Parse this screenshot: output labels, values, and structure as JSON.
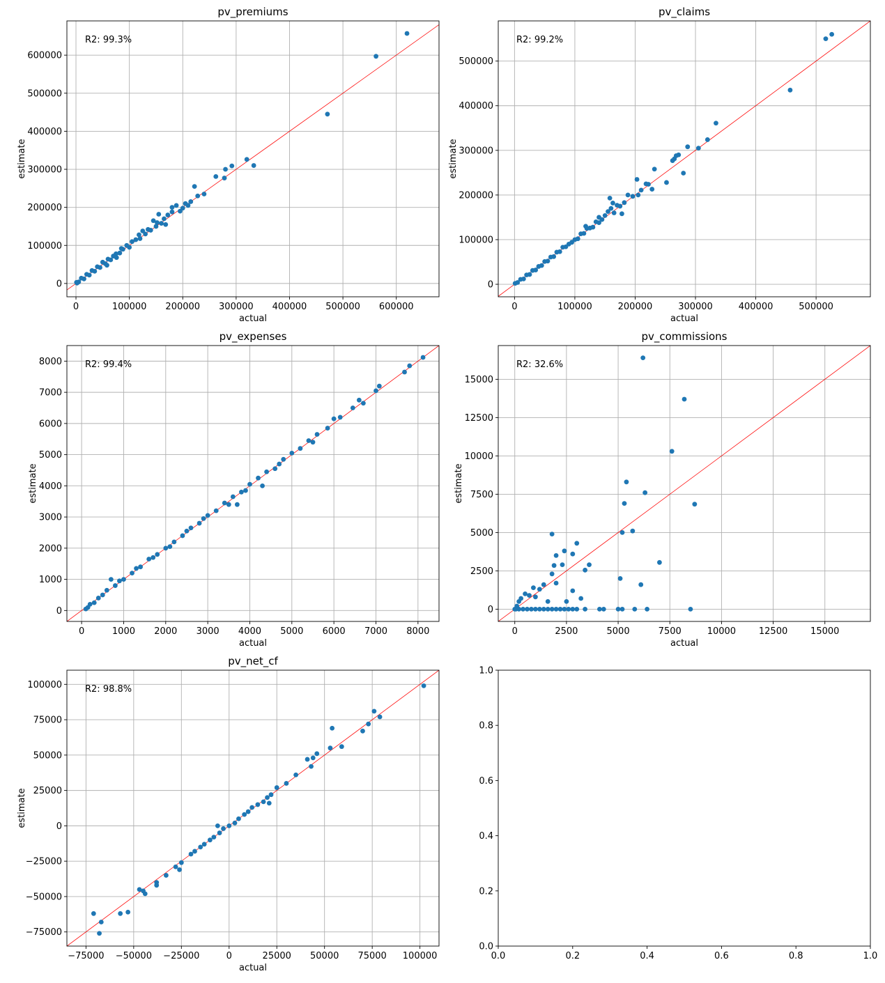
{
  "chart_data": [
    {
      "type": "scatter",
      "title": "pv_premiums",
      "xlabel": "actual",
      "ylabel": "estimate",
      "annotation": "R2: 99.3%",
      "xlim": [
        -17000,
        680000
      ],
      "ylim": [
        -35000,
        690000
      ],
      "xticks": [
        0,
        100000,
        200000,
        300000,
        400000,
        500000,
        600000
      ],
      "yticks": [
        0,
        100000,
        200000,
        300000,
        400000,
        500000,
        600000
      ],
      "grid": true,
      "reference_line": "y=x",
      "points": [
        [
          620000,
          657000
        ],
        [
          562000,
          597000
        ],
        [
          471000,
          445000
        ],
        [
          333000,
          310000
        ],
        [
          320000,
          326000
        ],
        [
          292000,
          309000
        ],
        [
          280000,
          300000
        ],
        [
          278000,
          277000
        ],
        [
          262000,
          281000
        ],
        [
          240000,
          235000
        ],
        [
          228000,
          230000
        ],
        [
          222000,
          255000
        ],
        [
          215000,
          215000
        ],
        [
          210000,
          205000
        ],
        [
          205000,
          210000
        ],
        [
          200000,
          198000
        ],
        [
          195000,
          190000
        ],
        [
          188000,
          205000
        ],
        [
          180000,
          200000
        ],
        [
          172000,
          180000
        ],
        [
          165000,
          170000
        ],
        [
          160000,
          158000
        ],
        [
          155000,
          182000
        ],
        [
          150000,
          150000
        ],
        [
          145000,
          165000
        ],
        [
          140000,
          140000
        ],
        [
          130000,
          130000
        ],
        [
          125000,
          138000
        ],
        [
          120000,
          118000
        ],
        [
          112000,
          115000
        ],
        [
          105000,
          110000
        ],
        [
          100000,
          95000
        ],
        [
          95000,
          100000
        ],
        [
          88000,
          90000
        ],
        [
          82000,
          80000
        ],
        [
          75000,
          78000
        ],
        [
          70000,
          72000
        ],
        [
          65000,
          62000
        ],
        [
          60000,
          64000
        ],
        [
          55000,
          52000
        ],
        [
          50000,
          56000
        ],
        [
          45000,
          42000
        ],
        [
          40000,
          44000
        ],
        [
          35000,
          32000
        ],
        [
          30000,
          34000
        ],
        [
          25000,
          22000
        ],
        [
          20000,
          24000
        ],
        [
          15000,
          12000
        ],
        [
          10000,
          14000
        ],
        [
          5000,
          4000
        ],
        [
          2000,
          1000
        ],
        [
          1000,
          3000
        ],
        [
          180000,
          188000
        ],
        [
          168000,
          155000
        ],
        [
          135000,
          142000
        ],
        [
          58000,
          48000
        ],
        [
          85000,
          92000
        ],
        [
          118000,
          128000
        ],
        [
          152000,
          160000
        ],
        [
          76000,
          68000
        ]
      ]
    },
    {
      "type": "scatter",
      "title": "pv_claims",
      "xlabel": "actual",
      "ylabel": "estimate",
      "annotation": "R2: 99.2%",
      "xlim": [
        -27000,
        590000
      ],
      "ylim": [
        -28000,
        590000
      ],
      "xticks": [
        0,
        100000,
        200000,
        300000,
        400000,
        500000
      ],
      "yticks": [
        0,
        100000,
        200000,
        300000,
        400000,
        500000
      ],
      "grid": true,
      "reference_line": "y=x",
      "points": [
        [
          526000,
          560000
        ],
        [
          516000,
          550000
        ],
        [
          457000,
          435000
        ],
        [
          334000,
          361000
        ],
        [
          320000,
          324000
        ],
        [
          305000,
          305000
        ],
        [
          287000,
          308000
        ],
        [
          280000,
          249000
        ],
        [
          272000,
          290000
        ],
        [
          268000,
          288000
        ],
        [
          265000,
          281000
        ],
        [
          262000,
          277000
        ],
        [
          252000,
          228000
        ],
        [
          232000,
          258000
        ],
        [
          228000,
          213000
        ],
        [
          222000,
          224000
        ],
        [
          218000,
          225000
        ],
        [
          210000,
          211000
        ],
        [
          205000,
          200000
        ],
        [
          203000,
          235000
        ],
        [
          196000,
          197000
        ],
        [
          188000,
          200000
        ],
        [
          182000,
          183000
        ],
        [
          178000,
          158000
        ],
        [
          175000,
          175000
        ],
        [
          170000,
          177000
        ],
        [
          165000,
          160000
        ],
        [
          160000,
          170000
        ],
        [
          158000,
          193000
        ],
        [
          155000,
          163000
        ],
        [
          150000,
          154000
        ],
        [
          145000,
          145000
        ],
        [
          140000,
          150000
        ],
        [
          135000,
          140000
        ],
        [
          130000,
          128000
        ],
        [
          125000,
          126000
        ],
        [
          120000,
          125000
        ],
        [
          115000,
          114000
        ],
        [
          110000,
          113000
        ],
        [
          105000,
          102000
        ],
        [
          100000,
          100000
        ],
        [
          95000,
          94000
        ],
        [
          90000,
          90000
        ],
        [
          85000,
          84000
        ],
        [
          80000,
          83000
        ],
        [
          75000,
          73000
        ],
        [
          70000,
          72000
        ],
        [
          65000,
          62000
        ],
        [
          60000,
          61000
        ],
        [
          55000,
          52000
        ],
        [
          50000,
          51000
        ],
        [
          45000,
          42000
        ],
        [
          40000,
          40000
        ],
        [
          35000,
          32000
        ],
        [
          30000,
          31000
        ],
        [
          25000,
          22000
        ],
        [
          20000,
          21000
        ],
        [
          15000,
          12000
        ],
        [
          10000,
          11000
        ],
        [
          5000,
          4000
        ],
        [
          1000,
          2000
        ],
        [
          163000,
          182000
        ],
        [
          140000,
          138000
        ],
        [
          118000,
          130000
        ]
      ]
    },
    {
      "type": "scatter",
      "title": "pv_expenses",
      "xlabel": "actual",
      "ylabel": "estimate",
      "annotation": "R2: 99.4%",
      "xlim": [
        -350,
        8500
      ],
      "ylim": [
        -350,
        8500
      ],
      "xticks": [
        0,
        1000,
        2000,
        3000,
        4000,
        5000,
        6000,
        7000,
        8000
      ],
      "yticks": [
        0,
        1000,
        2000,
        3000,
        4000,
        5000,
        6000,
        7000,
        8000
      ],
      "grid": true,
      "reference_line": "y=x",
      "points": [
        [
          8120,
          8120
        ],
        [
          7800,
          7850
        ],
        [
          7680,
          7650
        ],
        [
          7080,
          7200
        ],
        [
          7000,
          7050
        ],
        [
          6700,
          6650
        ],
        [
          6600,
          6750
        ],
        [
          6450,
          6500
        ],
        [
          6150,
          6200
        ],
        [
          6000,
          6150
        ],
        [
          5850,
          5850
        ],
        [
          5600,
          5650
        ],
        [
          5400,
          5450
        ],
        [
          5200,
          5200
        ],
        [
          5000,
          5050
        ],
        [
          4800,
          4850
        ],
        [
          4600,
          4550
        ],
        [
          4400,
          4450
        ],
        [
          4200,
          4250
        ],
        [
          4000,
          4050
        ],
        [
          3800,
          3800
        ],
        [
          3600,
          3650
        ],
        [
          3400,
          3450
        ],
        [
          3200,
          3200
        ],
        [
          3000,
          3050
        ],
        [
          2800,
          2800
        ],
        [
          2600,
          2650
        ],
        [
          2400,
          2400
        ],
        [
          2200,
          2200
        ],
        [
          2000,
          2000
        ],
        [
          1800,
          1800
        ],
        [
          1600,
          1650
        ],
        [
          1400,
          1400
        ],
        [
          1200,
          1200
        ],
        [
          1000,
          1000
        ],
        [
          800,
          800
        ],
        [
          600,
          650
        ],
        [
          400,
          400
        ],
        [
          200,
          200
        ],
        [
          100,
          50
        ],
        [
          5500,
          5400
        ],
        [
          4700,
          4700
        ],
        [
          3900,
          3850
        ],
        [
          3500,
          3400
        ],
        [
          2900,
          2950
        ],
        [
          2500,
          2550
        ],
        [
          2100,
          2050
        ],
        [
          1700,
          1700
        ],
        [
          1300,
          1350
        ],
        [
          900,
          950
        ],
        [
          500,
          500
        ],
        [
          300,
          250
        ],
        [
          150,
          100
        ],
        [
          4300,
          4000
        ],
        [
          3700,
          3400
        ],
        [
          700,
          1000
        ]
      ]
    },
    {
      "type": "scatter",
      "title": "pv_commissions",
      "xlabel": "actual",
      "ylabel": "estimate",
      "annotation": "R2: 32.6%",
      "xlim": [
        -800,
        17200
      ],
      "ylim": [
        -800,
        17200
      ],
      "xticks": [
        0,
        2500,
        5000,
        7500,
        10000,
        12500,
        15000
      ],
      "yticks": [
        0,
        2500,
        5000,
        7500,
        10000,
        12500,
        15000
      ],
      "grid": true,
      "reference_line": "y=x",
      "points": [
        [
          6200,
          16400
        ],
        [
          8200,
          13700
        ],
        [
          7600,
          10300
        ],
        [
          5400,
          8300
        ],
        [
          6300,
          7600
        ],
        [
          5300,
          6900
        ],
        [
          8700,
          6850
        ],
        [
          5700,
          5100
        ],
        [
          5200,
          5000
        ],
        [
          1800,
          4900
        ],
        [
          3000,
          4300
        ],
        [
          2400,
          3800
        ],
        [
          2800,
          3600
        ],
        [
          2000,
          3500
        ],
        [
          7000,
          3050
        ],
        [
          3600,
          2900
        ],
        [
          2300,
          2900
        ],
        [
          1900,
          2850
        ],
        [
          3400,
          2550
        ],
        [
          1800,
          2300
        ],
        [
          5100,
          2000
        ],
        [
          2000,
          1700
        ],
        [
          6100,
          1600
        ],
        [
          1400,
          1600
        ],
        [
          900,
          1400
        ],
        [
          1200,
          1300
        ],
        [
          2800,
          1200
        ],
        [
          500,
          1000
        ],
        [
          700,
          900
        ],
        [
          1000,
          800
        ],
        [
          3200,
          700
        ],
        [
          300,
          700
        ],
        [
          200,
          500
        ],
        [
          2500,
          500
        ],
        [
          1600,
          500
        ],
        [
          100,
          200
        ],
        [
          0,
          0
        ],
        [
          50,
          0
        ],
        [
          200,
          0
        ],
        [
          400,
          0
        ],
        [
          600,
          0
        ],
        [
          800,
          0
        ],
        [
          1000,
          0
        ],
        [
          1200,
          0
        ],
        [
          1400,
          0
        ],
        [
          1600,
          0
        ],
        [
          1800,
          0
        ],
        [
          2000,
          0
        ],
        [
          2200,
          0
        ],
        [
          2400,
          0
        ],
        [
          2600,
          0
        ],
        [
          2800,
          0
        ],
        [
          3000,
          0
        ],
        [
          3400,
          0
        ],
        [
          4100,
          0
        ],
        [
          4300,
          0
        ],
        [
          5000,
          0
        ],
        [
          5200,
          0
        ],
        [
          5800,
          0
        ],
        [
          6400,
          0
        ],
        [
          8500,
          0
        ]
      ]
    },
    {
      "type": "scatter",
      "title": "pv_net_cf",
      "xlabel": "actual",
      "ylabel": "estimate",
      "annotation": "R2: 98.8%",
      "xlim": [
        -85000,
        110000
      ],
      "ylim": [
        -85000,
        110000
      ],
      "xticks": [
        -75000,
        -50000,
        -25000,
        0,
        25000,
        50000,
        75000,
        100000
      ],
      "yticks": [
        -75000,
        -50000,
        -25000,
        0,
        25000,
        50000,
        75000,
        100000
      ],
      "grid": true,
      "reference_line": "y=x",
      "points": [
        [
          102000,
          99000
        ],
        [
          79000,
          77000
        ],
        [
          76000,
          81000
        ],
        [
          73000,
          72000
        ],
        [
          70000,
          67000
        ],
        [
          59000,
          56000
        ],
        [
          54000,
          69000
        ],
        [
          53000,
          55000
        ],
        [
          46000,
          51000
        ],
        [
          44000,
          48000
        ],
        [
          43000,
          42000
        ],
        [
          41000,
          47000
        ],
        [
          35000,
          36000
        ],
        [
          30000,
          30000
        ],
        [
          25000,
          27000
        ],
        [
          22000,
          22000
        ],
        [
          20000,
          20000
        ],
        [
          18000,
          17000
        ],
        [
          15000,
          15000
        ],
        [
          12000,
          13000
        ],
        [
          10000,
          10000
        ],
        [
          8000,
          8000
        ],
        [
          5000,
          5000
        ],
        [
          3000,
          2000
        ],
        [
          0,
          0
        ],
        [
          -3000,
          -2000
        ],
        [
          -5000,
          -5000
        ],
        [
          -8000,
          -8000
        ],
        [
          -10000,
          -10000
        ],
        [
          -13000,
          -13000
        ],
        [
          -15000,
          -15000
        ],
        [
          -18000,
          -18000
        ],
        [
          -20000,
          -20000
        ],
        [
          -25000,
          -26000
        ],
        [
          -28000,
          -29000
        ],
        [
          -33000,
          -35000
        ],
        [
          -38000,
          -40000
        ],
        [
          -38000,
          -42000
        ],
        [
          -44000,
          -48000
        ],
        [
          -45000,
          -46000
        ],
        [
          -47000,
          -45000
        ],
        [
          -53000,
          -61000
        ],
        [
          -57000,
          -62000
        ],
        [
          -67000,
          -68000
        ],
        [
          -68000,
          -76000
        ],
        [
          -71000,
          -62000
        ],
        [
          -26000,
          -31000
        ],
        [
          -6000,
          0
        ],
        [
          21000,
          16000
        ]
      ]
    },
    {
      "type": "scatter",
      "title": "",
      "xlabel": "",
      "ylabel": "",
      "annotation": "",
      "xlim": [
        0,
        1
      ],
      "ylim": [
        0,
        1
      ],
      "xticks": [
        0.0,
        0.2,
        0.4,
        0.6,
        0.8,
        1.0
      ],
      "yticks": [
        0.0,
        0.2,
        0.4,
        0.6,
        0.8,
        1.0
      ],
      "tick_labels": [
        "0.0",
        "0.2",
        "0.4",
        "0.6",
        "0.8",
        "1.0"
      ],
      "grid": false,
      "reference_line": "",
      "points": []
    }
  ]
}
